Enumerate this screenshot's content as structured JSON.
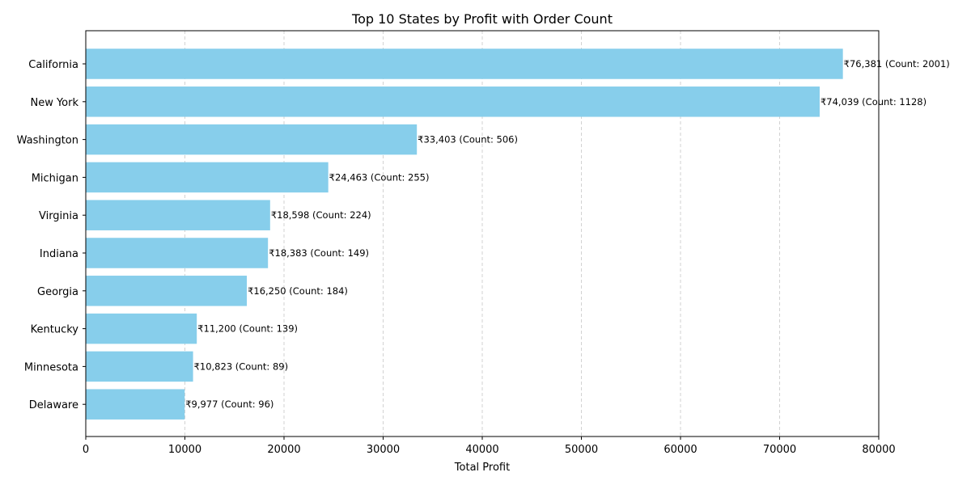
{
  "chart_data": {
    "type": "bar",
    "orientation": "horizontal",
    "title": "Top 10 States by Profit with Order Count",
    "xlabel": "Total Profit",
    "ylabel": "",
    "xlim": [
      0,
      80000
    ],
    "xticks": [
      0,
      10000,
      20000,
      30000,
      40000,
      50000,
      60000,
      70000,
      80000
    ],
    "xtick_labels": [
      "0",
      "10000",
      "20000",
      "30000",
      "40000",
      "50000",
      "60000",
      "70000",
      "80000"
    ],
    "grid": {
      "x": true,
      "y": false,
      "style": "dashed"
    },
    "bar_color": "#87ceeb",
    "categories": [
      "California",
      "New York",
      "Washington",
      "Michigan",
      "Virginia",
      "Indiana",
      "Georgia",
      "Kentucky",
      "Minnesota",
      "Delaware"
    ],
    "values": [
      76381,
      74039,
      33403,
      24463,
      18598,
      18383,
      16250,
      11200,
      10823,
      9977
    ],
    "counts": [
      2001,
      1128,
      506,
      255,
      224,
      149,
      184,
      139,
      89,
      96
    ],
    "data_labels": [
      "₹76,381 (Count: 2001)",
      "₹74,039 (Count: 1128)",
      "₹33,403 (Count: 506)",
      "₹24,463 (Count: 255)",
      "₹18,598 (Count: 224)",
      "₹18,383 (Count: 149)",
      "₹16,250 (Count: 184)",
      "₹11,200 (Count: 139)",
      "₹10,823 (Count: 89)",
      "₹9,977 (Count: 96)"
    ]
  }
}
